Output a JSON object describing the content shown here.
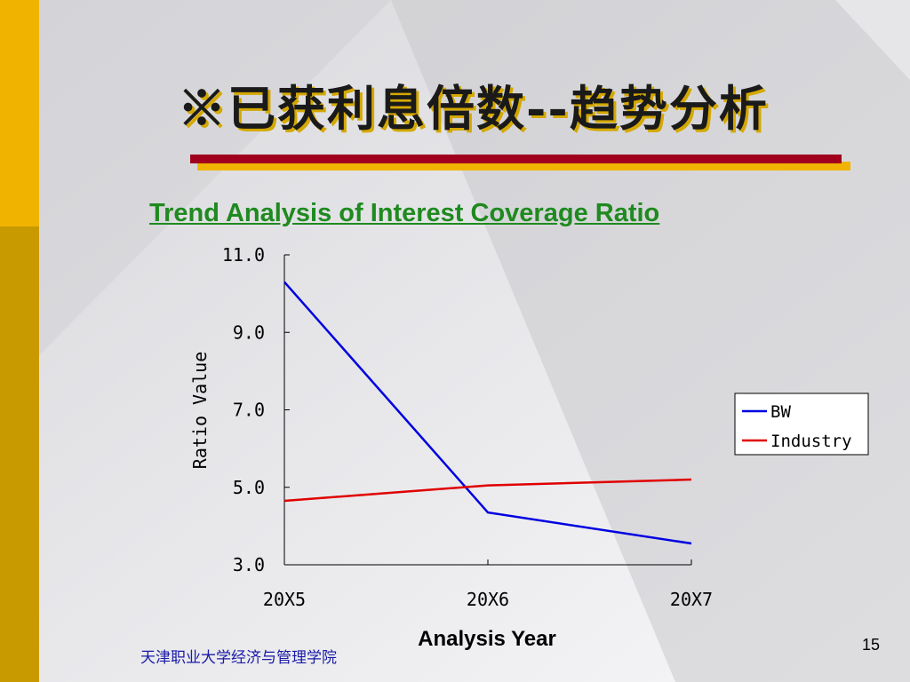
{
  "slide": {
    "title": "※已获利息倍数--趋势分析",
    "footer": "天津职业大学经济与管理学院",
    "page_number": "15"
  },
  "colors": {
    "accent_gold": "#f0b400",
    "accent_dark_gold": "#c89a00",
    "rule_red": "#a0001e",
    "title_green": "#1f8a1f",
    "series_bw": "#0000e0",
    "series_industry": "#e00000"
  },
  "chart_data": {
    "type": "line",
    "title": "Trend Analysis of Interest Coverage Ratio",
    "xlabel": "Analysis Year",
    "ylabel": "Ratio Value",
    "categories": [
      "20X5",
      "20X6",
      "20X7"
    ],
    "ylim": [
      3.0,
      11.0
    ],
    "yticks": [
      "3.0",
      "5.0",
      "7.0",
      "9.0",
      "11.0"
    ],
    "legend_position": "right",
    "grid": false,
    "series": [
      {
        "name": "BW",
        "values": [
          10.3,
          4.35,
          3.55
        ],
        "color": "#0000e0"
      },
      {
        "name": "Industry",
        "values": [
          4.65,
          5.05,
          5.2
        ],
        "color": "#e00000"
      }
    ]
  }
}
